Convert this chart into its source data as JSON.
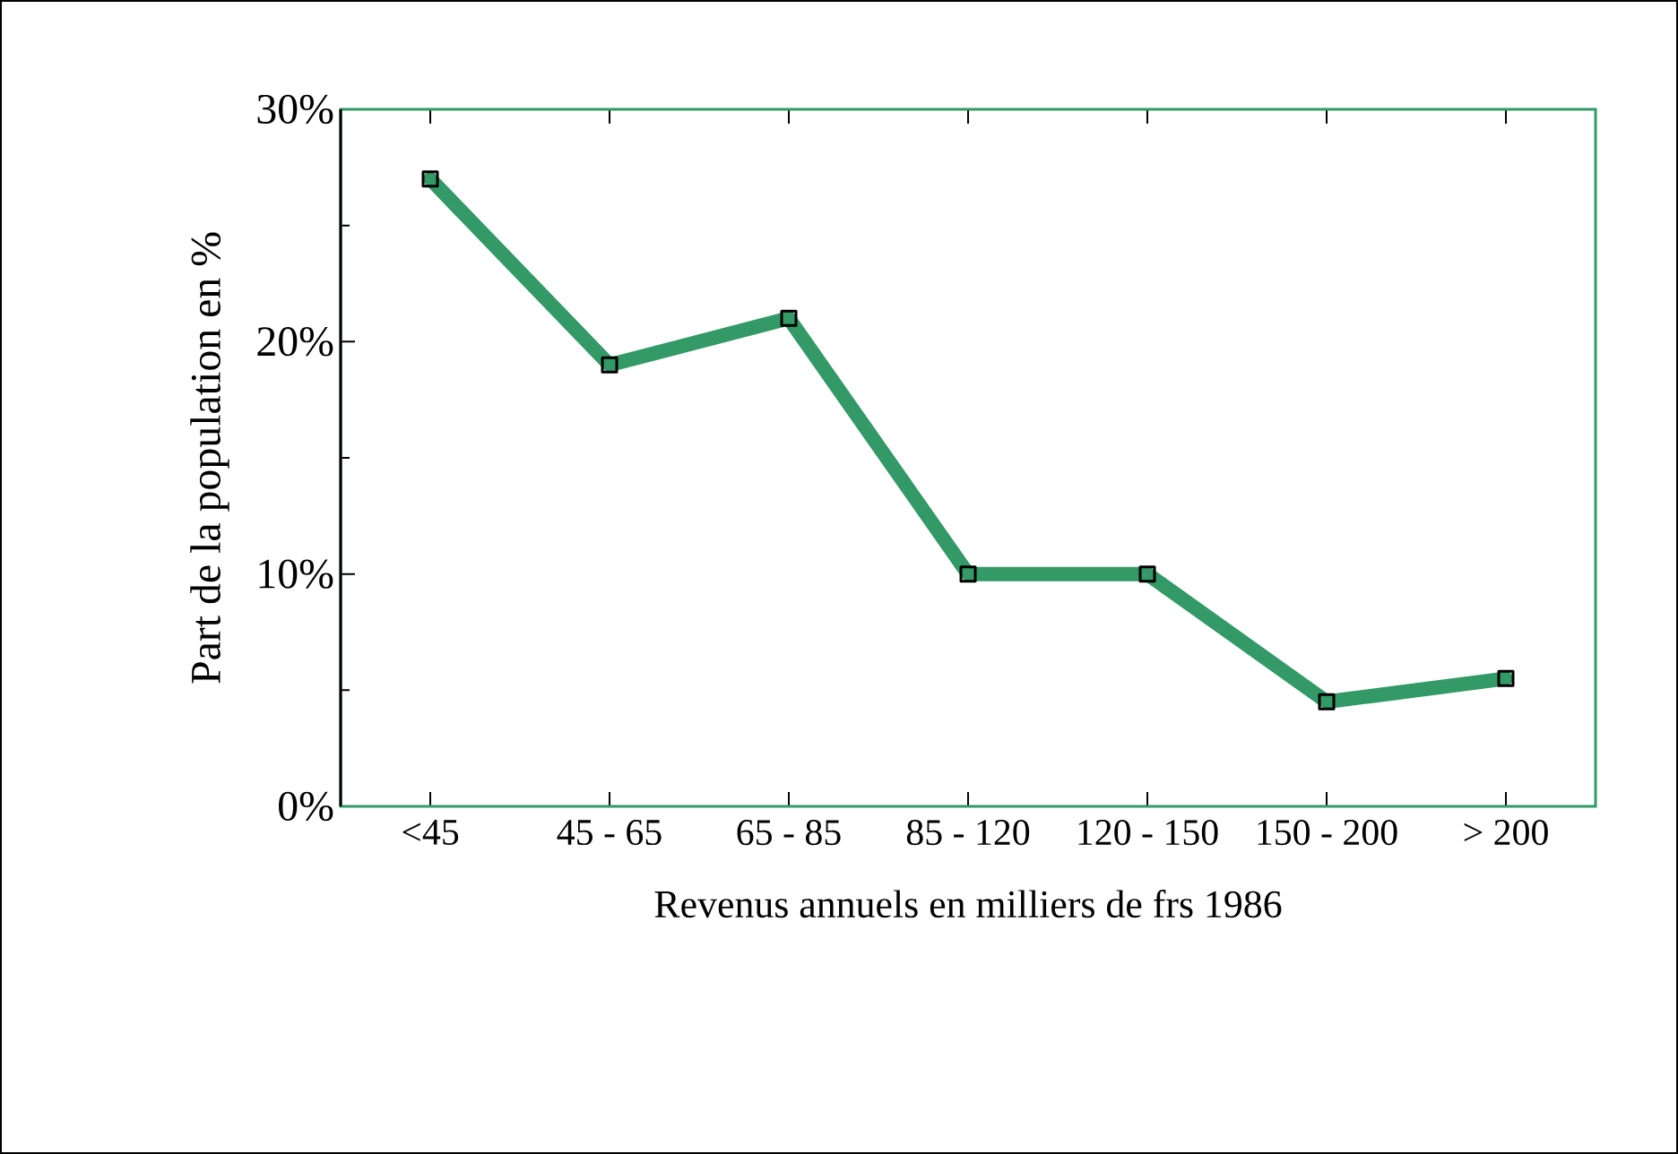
{
  "chart_data": {
    "type": "line",
    "xlabel": "Revenus annuels en milliers de frs 1986",
    "ylabel": "Part de la population  en %",
    "categories": [
      "<45",
      "45 - 65",
      "65 - 85",
      "85 - 120",
      "120 - 150",
      "150 - 200",
      "> 200"
    ],
    "series": [
      {
        "color": "#339966",
        "values": [
          27,
          19,
          21,
          10,
          10,
          4.5,
          5.5
        ]
      }
    ],
    "ylim": [
      0,
      30
    ],
    "yticks": [
      {
        "value": 0,
        "label": "0%"
      },
      {
        "value": 10,
        "label": "10%"
      },
      {
        "value": 20,
        "label": "20%"
      },
      {
        "value": 30,
        "label": "30%"
      }
    ],
    "marker": "square",
    "grid": false
  }
}
